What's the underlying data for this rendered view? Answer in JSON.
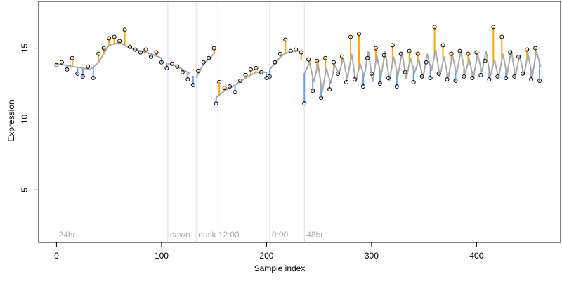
{
  "colors": {
    "up": "#ffa500",
    "down": "#6f9cdc",
    "fit": "#a9a9a9",
    "point_edge": "#000000",
    "grid": "#e0e0e0",
    "condition_text": "#aaaaaa"
  },
  "chart_data": {
    "type": "scatter",
    "xlabel": "Sample index",
    "ylabel": "Expression",
    "xlim": [
      -17,
      480
    ],
    "ylim": [
      1.3,
      18.3
    ],
    "xticks": [
      0,
      100,
      200,
      300,
      400
    ],
    "yticks": [
      5,
      10,
      15
    ],
    "grid": "vertical separators between conditions",
    "conditions": [
      {
        "label": "24hr",
        "start": 0
      },
      {
        "label": "dawn",
        "start": 106
      },
      {
        "label": "dusk",
        "start": 133
      },
      {
        "label": "12:00",
        "start": 152
      },
      {
        "label": "0:00",
        "start": 203
      },
      {
        "label": "48hr",
        "start": 236
      }
    ],
    "separators": [
      106,
      133,
      152,
      203,
      236
    ],
    "series": [
      {
        "name": "fitted",
        "description": "smoothed expression line",
        "x": [
          0,
          8,
          16,
          24,
          32,
          40,
          50,
          60,
          70,
          80,
          90,
          100,
          106,
          112,
          120,
          127,
          133,
          140,
          146,
          151,
          152,
          160,
          170,
          180,
          190,
          200,
          203,
          210,
          215,
          220,
          226,
          231,
          236,
          241,
          245,
          249,
          253,
          257,
          261,
          265,
          269,
          273,
          277,
          281,
          285,
          289,
          293,
          297,
          301,
          305,
          309,
          313,
          317,
          321,
          325,
          329,
          333,
          337,
          341,
          345,
          349,
          353,
          357,
          361,
          365,
          369,
          373,
          377,
          381,
          385,
          389,
          393,
          397,
          401,
          405,
          409,
          413,
          417,
          421,
          425,
          429,
          433,
          437,
          441,
          445,
          449,
          453,
          457,
          461
        ],
        "y": [
          13.9,
          13.8,
          13.7,
          13.6,
          13.5,
          14.0,
          15.2,
          15.4,
          15.0,
          14.8,
          14.6,
          14.3,
          13.9,
          13.8,
          13.5,
          13.2,
          12.9,
          13.9,
          14.3,
          14.7,
          11.5,
          12.0,
          12.4,
          12.9,
          13.3,
          13.3,
          13.5,
          14.1,
          14.5,
          14.7,
          14.8,
          14.8,
          13.2,
          14.0,
          12.6,
          13.9,
          11.9,
          13.6,
          12.5,
          13.8,
          13.2,
          14.3,
          12.8,
          14.6,
          12.6,
          13.9,
          13.0,
          14.8,
          12.6,
          14.5,
          13.0,
          14.8,
          12.7,
          14.4,
          13.0,
          14.7,
          12.8,
          14.3,
          13.3,
          14.2,
          12.9,
          14.6,
          13.4,
          14.9,
          13.0,
          14.4,
          12.9,
          14.5,
          13.2,
          14.8,
          13.2,
          14.2,
          12.9,
          14.6,
          13.3,
          14.8,
          13.0,
          14.2,
          12.9,
          14.6,
          13.1,
          14.9,
          13.0,
          14.5,
          13.1,
          14.6,
          13.0,
          14.8,
          13.7
        ]
      },
      {
        "name": "observed",
        "description": "observed sample values (circles)",
        "x": [
          0,
          5,
          10,
          15,
          20,
          25,
          30,
          35,
          40,
          45,
          50,
          55,
          60,
          65,
          70,
          75,
          80,
          85,
          90,
          95,
          100,
          105,
          110,
          115,
          120,
          125,
          130,
          135,
          140,
          145,
          150,
          152,
          155,
          160,
          165,
          170,
          175,
          180,
          185,
          190,
          195,
          200,
          203,
          208,
          213,
          218,
          223,
          228,
          233,
          236,
          240,
          244,
          248,
          252,
          256,
          260,
          264,
          268,
          272,
          276,
          280,
          284,
          288,
          292,
          296,
          300,
          304,
          308,
          312,
          316,
          320,
          324,
          328,
          332,
          336,
          340,
          344,
          348,
          352,
          356,
          360,
          364,
          368,
          372,
          376,
          380,
          384,
          388,
          392,
          396,
          400,
          404,
          408,
          412,
          416,
          420,
          424,
          428,
          432,
          436,
          440,
          444,
          448,
          452,
          456,
          460
        ],
        "y": [
          13.8,
          14.0,
          13.5,
          14.3,
          13.2,
          13.0,
          13.7,
          12.9,
          14.6,
          15.0,
          15.7,
          15.8,
          15.5,
          16.3,
          15.1,
          14.9,
          14.7,
          14.9,
          14.4,
          14.7,
          14.0,
          13.6,
          13.9,
          13.7,
          13.3,
          12.8,
          12.4,
          13.4,
          14.0,
          14.3,
          15.0,
          11.1,
          12.6,
          12.2,
          12.3,
          11.9,
          12.7,
          13.1,
          13.5,
          13.6,
          13.3,
          12.9,
          13.0,
          14.0,
          14.6,
          15.6,
          14.8,
          14.9,
          14.7,
          11.1,
          14.2,
          12.0,
          14.1,
          11.5,
          14.3,
          12.1,
          14.0,
          13.2,
          14.4,
          12.6,
          15.8,
          12.8,
          16.0,
          12.3,
          14.3,
          13.2,
          15.0,
          12.5,
          14.5,
          12.9,
          15.2,
          12.3,
          14.6,
          13.3,
          14.8,
          12.6,
          14.6,
          13.0,
          14.0,
          12.9,
          16.5,
          13.2,
          15.2,
          12.8,
          14.6,
          12.7,
          14.8,
          13.0,
          14.6,
          12.9,
          14.7,
          13.1,
          14.1,
          12.8,
          16.5,
          13.0,
          15.8,
          12.9,
          14.7,
          13.0,
          14.4,
          13.2,
          14.9,
          12.8,
          15.0,
          12.7
        ]
      }
    ]
  }
}
